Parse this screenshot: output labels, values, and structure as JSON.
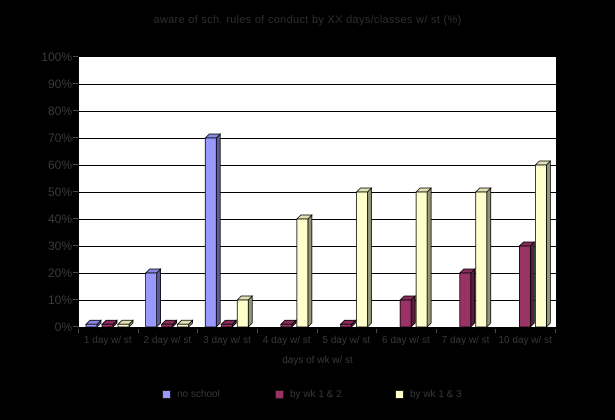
{
  "chart_data": {
    "type": "bar",
    "title": "aware of sch. rules of conduct by XX days/classes w/ st (%)",
    "categories": [
      "1 day w/ st",
      "2 day w/ st",
      "3 day w/ st",
      "4 day w/ st",
      "5 day w/ st",
      "6 day w/ st",
      "7 day w/ st",
      "10 day w/ st"
    ],
    "series": [
      {
        "name": "no school",
        "color": "#9999FF",
        "values": [
          1,
          20,
          70,
          0,
          0,
          0,
          0,
          0
        ]
      },
      {
        "name": "by wk 1 & 2",
        "color": "#993366",
        "values": [
          1,
          1,
          1,
          1,
          1,
          10,
          20,
          30
        ]
      },
      {
        "name": "by wk 1 & 3",
        "color": "#FFFFCC",
        "values": [
          1,
          1,
          10,
          40,
          50,
          50,
          50,
          60
        ]
      }
    ],
    "xlabel": "days of wk w/ st",
    "ylabel": "",
    "ylim": [
      0,
      100
    ],
    "ytick_step": 10,
    "ytick_labels": [
      "0%",
      "10%",
      "20%",
      "30%",
      "40%",
      "50%",
      "60%",
      "70%",
      "80%",
      "90%",
      "100%"
    ],
    "grid": true,
    "legend_position": "bottom",
    "plot_background": "#FFFFFF",
    "chart_background": "#000000",
    "text_color": "#2e2e2e"
  }
}
